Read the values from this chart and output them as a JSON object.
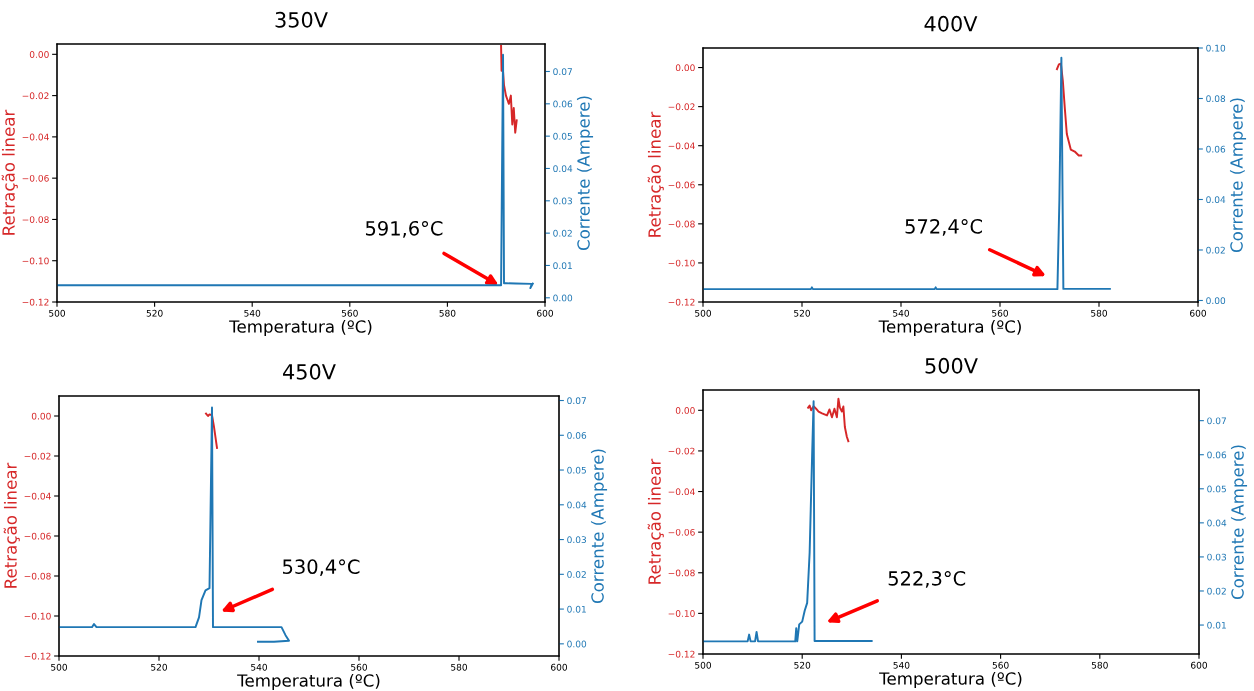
{
  "chart_data": [
    {
      "type": "line",
      "title": "350V",
      "xlabel": "Temperatura (ºC)",
      "ylabel": "Retração linear",
      "y2label": "Corrente (Ampere)",
      "xlim": [
        500,
        600
      ],
      "xticks": [
        500,
        520,
        540,
        560,
        580,
        600
      ],
      "ylim": [
        -0.12,
        0.005
      ],
      "yticks": [
        {
          "value": -0.12,
          "label": "−0.12"
        },
        {
          "value": -0.1,
          "label": "−0.10"
        },
        {
          "value": -0.08,
          "label": "−0.08"
        },
        {
          "value": -0.06,
          "label": "−0.06"
        },
        {
          "value": -0.04,
          "label": "−0.04"
        },
        {
          "value": -0.02,
          "label": "−0.02"
        },
        {
          "value": 0,
          "label": "0.00"
        }
      ],
      "y2lim": [
        -0.0013,
        0.0785
      ],
      "y2ticks": [
        {
          "value": 0,
          "label": "0.00"
        },
        {
          "value": 0.01,
          "label": "0.01"
        },
        {
          "value": 0.02,
          "label": "0.02"
        },
        {
          "value": 0.03,
          "label": "0.03"
        },
        {
          "value": 0.04,
          "label": "0.04"
        },
        {
          "value": 0.05,
          "label": "0.05"
        },
        {
          "value": 0.06,
          "label": "0.06"
        },
        {
          "value": 0.07,
          "label": "0.07"
        }
      ],
      "series": [
        {
          "color": "#d62728",
          "x": [
            591.0,
            591.1,
            591.3,
            591.6,
            592.0,
            592.3,
            592.6,
            593.0,
            593.3,
            593.6,
            593.9,
            594.2
          ],
          "values": [
            0.004,
            -0.008,
            -0.005,
            -0.015,
            -0.02,
            -0.022,
            -0.024,
            -0.02,
            -0.034,
            -0.026,
            -0.038,
            -0.032
          ]
        },
        {
          "color": "#1f77b4",
          "axis": "y2",
          "x": [
            500,
            520,
            540,
            560,
            580,
            591.0,
            591.2,
            591.4,
            591.6,
            592.0,
            594,
            597.3,
            597.0,
            597.5
          ],
          "values": [
            0.0039,
            0.0039,
            0.0039,
            0.0039,
            0.0039,
            0.0039,
            0.04,
            0.0752,
            0.0045,
            0.0045,
            0.0044,
            0.0043,
            0.003,
            0.0044
          ]
        }
      ],
      "annotations": [
        {
          "text": "591,6°C",
          "x": 590.5,
          "y": -0.1119
        }
      ]
    },
    {
      "type": "line",
      "title": "400V",
      "xlabel": "Temperatura (ºC)",
      "ylabel": "Retração linear",
      "y2label": "Corrente (Ampere)",
      "xlim": [
        500,
        600
      ],
      "xticks": [
        500,
        520,
        540,
        560,
        580,
        600
      ],
      "ylim": [
        -0.12,
        0.01
      ],
      "yticks": [
        {
          "value": -0.12,
          "label": "−0.12"
        },
        {
          "value": -0.1,
          "label": "−0.10"
        },
        {
          "value": -0.08,
          "label": "−0.08"
        },
        {
          "value": -0.06,
          "label": "−0.06"
        },
        {
          "value": -0.04,
          "label": "−0.04"
        },
        {
          "value": -0.02,
          "label": "−0.02"
        },
        {
          "value": 0,
          "label": "0.00"
        }
      ],
      "y2lim": [
        -0.0006,
        0.1
      ],
      "y2ticks": [
        {
          "value": 0,
          "label": "0.00"
        },
        {
          "value": 0.02,
          "label": "0.02"
        },
        {
          "value": 0.04,
          "label": "0.04"
        },
        {
          "value": 0.06,
          "label": "0.06"
        },
        {
          "value": 0.08,
          "label": "0.08"
        },
        {
          "value": 0.1,
          "label": "0.10"
        }
      ],
      "series": [
        {
          "color": "#d62728",
          "x": [
            571.5,
            571.9,
            572.3,
            572.7,
            573.1,
            573.5,
            573.9,
            574.3,
            575.1,
            575.9,
            576.4
          ],
          "values": [
            -0.0008,
            0.0016,
            0.002,
            -0.007,
            -0.021,
            -0.034,
            -0.038,
            -0.042,
            -0.043,
            -0.045,
            -0.045
          ]
        },
        {
          "color": "#1f77b4",
          "axis": "y2",
          "x": [
            500,
            521.8,
            522.0,
            522.2,
            540,
            546.8,
            547.0,
            547.2,
            571.6,
            572.0,
            572.4,
            572.8,
            577,
            582.2
          ],
          "values": [
            0.0045,
            0.0045,
            0.0052,
            0.0045,
            0.0045,
            0.0045,
            0.0052,
            0.0045,
            0.0045,
            0.04,
            0.0961,
            0.0046,
            0.0046,
            0.0046
          ]
        }
      ],
      "annotations": [
        "572,4°C"
      ]
    },
    {
      "type": "line",
      "title": "450V",
      "xlabel": "Temperatura (ºC)",
      "ylabel": "Retração linear",
      "y2label": "Corrente (Ampere)",
      "xlim": [
        500,
        600
      ],
      "xticks": [
        500,
        520,
        540,
        560,
        580,
        600
      ],
      "ylim": [
        -0.12,
        0.01
      ],
      "yticks": [
        {
          "value": -0.12,
          "label": "−0.12"
        },
        {
          "value": -0.1,
          "label": "−0.10"
        },
        {
          "value": -0.08,
          "label": "−0.08"
        },
        {
          "value": -0.06,
          "label": "−0.06"
        },
        {
          "value": -0.04,
          "label": "−0.04"
        },
        {
          "value": -0.02,
          "label": "−0.02"
        },
        {
          "value": 0,
          "label": "0.00"
        }
      ],
      "y2lim": [
        -0.0035,
        0.0713
      ],
      "y2ticks": [
        {
          "value": 0,
          "label": "0.00"
        },
        {
          "value": 0.01,
          "label": "0.01"
        },
        {
          "value": 0.02,
          "label": "0.02"
        },
        {
          "value": 0.03,
          "label": "0.03"
        },
        {
          "value": 0.04,
          "label": "0.04"
        },
        {
          "value": 0.05,
          "label": "0.05"
        },
        {
          "value": 0.06,
          "label": "0.06"
        },
        {
          "value": 0.07,
          "label": "0.07"
        }
      ],
      "series": [
        {
          "color": "#d62728",
          "x": [
            529.4,
            529.8,
            530.1,
            530.6,
            531.0,
            531.6
          ],
          "values": [
            0.0012,
            0.0,
            0.0008,
            0.0004,
            -0.0054,
            -0.016
          ]
        },
        {
          "color": "#1f77b4",
          "axis": "y2",
          "x": [
            500,
            506.6,
            507.0,
            507.5,
            520,
            527.3,
            528.0,
            528.5,
            529.3,
            530.1,
            530.6,
            530.8,
            538,
            544.5,
            545.3,
            546.0,
            543,
            539.8
          ],
          "values": [
            0.0048,
            0.0048,
            0.0057,
            0.0048,
            0.0048,
            0.0048,
            0.0076,
            0.0126,
            0.0154,
            0.016,
            0.068,
            0.0048,
            0.0048,
            0.0048,
            0.0025,
            0.0009,
            0.0006,
            0.0006
          ]
        }
      ],
      "annotations": [
        "530,4°C"
      ]
    },
    {
      "type": "line",
      "title": "500V",
      "xlabel": "Temperatura (ºC)",
      "ylabel": "Retração linear",
      "y2label": "Corrente (Ampere)",
      "xlim": [
        500,
        600
      ],
      "xticks": [
        500,
        520,
        540,
        560,
        580,
        600
      ],
      "ylim": [
        -0.12,
        0.01
      ],
      "yticks": [
        {
          "value": -0.12,
          "label": "−0.12"
        },
        {
          "value": -0.1,
          "label": "−0.10"
        },
        {
          "value": -0.08,
          "label": "−0.08"
        },
        {
          "value": -0.06,
          "label": "−0.06"
        },
        {
          "value": -0.04,
          "label": "−0.04"
        },
        {
          "value": -0.02,
          "label": "−0.02"
        },
        {
          "value": 0,
          "label": "0.00"
        }
      ],
      "y2lim": [
        0.0015,
        0.079
      ],
      "y2ticks": [
        {
          "value": 0.01,
          "label": "0.01"
        },
        {
          "value": 0.02,
          "label": "0.02"
        },
        {
          "value": 0.03,
          "label": "0.03"
        },
        {
          "value": 0.04,
          "label": "0.04"
        },
        {
          "value": 0.05,
          "label": "0.05"
        },
        {
          "value": 0.06,
          "label": "0.06"
        },
        {
          "value": 0.07,
          "label": "0.07"
        }
      ],
      "series": [
        {
          "color": "#d62728",
          "x": [
            521.2,
            521.5,
            521.8,
            522.3,
            522.8,
            523.3,
            524.0,
            525.0,
            525.5,
            526.0,
            526.5,
            527.0,
            527.3,
            527.6,
            528.0,
            528.3,
            528.6,
            529.0,
            529.3
          ],
          "values": [
            0.0013,
            0.0023,
            0.0,
            0.002,
            0.0008,
            -0.0006,
            -0.0015,
            -0.0025,
            0.0004,
            -0.0034,
            0.0008,
            -0.0034,
            0.0057,
            0.0013,
            -0.0006,
            0.0019,
            -0.0082,
            -0.013,
            -0.0152
          ]
        },
        {
          "color": "#1f77b4",
          "axis": "y2",
          "x": [
            500,
            509.0,
            509.3,
            509.6,
            510.5,
            510.8,
            511.1,
            518.6,
            518.8,
            519.0,
            519.4,
            520.0,
            520.5,
            521.0,
            521.5,
            522.0,
            522.3,
            522.5,
            528,
            534
          ],
          "values": [
            0.0052,
            0.0052,
            0.0072,
            0.0052,
            0.0052,
            0.008,
            0.0052,
            0.0052,
            0.0091,
            0.0052,
            0.0102,
            0.011,
            0.0142,
            0.0165,
            0.0313,
            0.0598,
            0.0757,
            0.0053,
            0.0053,
            0.0053
          ]
        }
      ],
      "annotations": [
        "522,3°C"
      ]
    }
  ]
}
